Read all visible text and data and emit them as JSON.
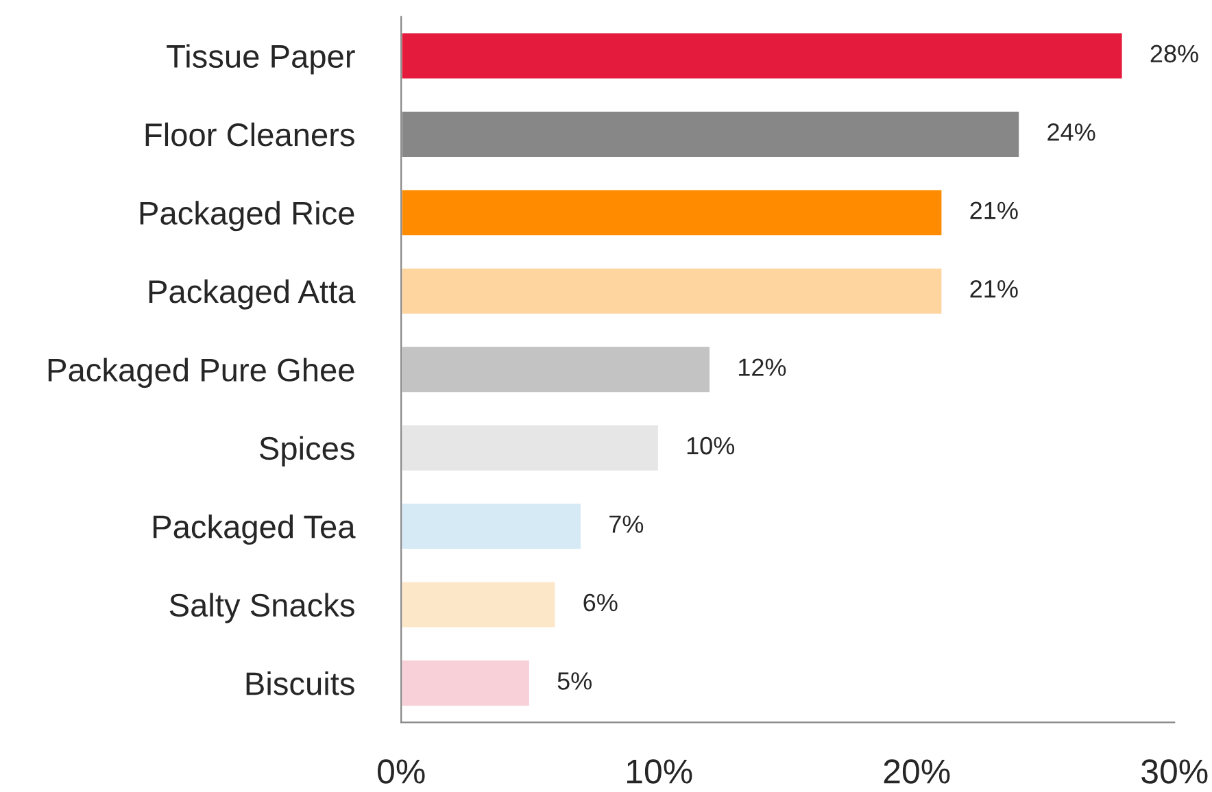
{
  "chart_data": {
    "type": "bar",
    "orientation": "horizontal",
    "categories": [
      "Tissue Paper",
      "Floor Cleaners",
      "Packaged Rice",
      "Packaged Atta",
      "Packaged Pure Ghee",
      "Spices",
      "Packaged Tea",
      "Salty Snacks",
      "Biscuits"
    ],
    "values": [
      28,
      24,
      21,
      21,
      12,
      10,
      7,
      6,
      5
    ],
    "colors": [
      "#e41b3c",
      "#878787",
      "#ff8c00",
      "#ffd59f",
      "#c3c3c3",
      "#e6e6e6",
      "#d6eaf6",
      "#fde7c9",
      "#f7d0d8"
    ],
    "value_labels": [
      "28%",
      "24%",
      "21%",
      "21%",
      "12%",
      "10%",
      "7%",
      "6%",
      "5%"
    ],
    "xlim": [
      0,
      30
    ],
    "xticks": [
      {
        "value": 0,
        "label": "0%"
      },
      {
        "value": 10,
        "label": "10%"
      },
      {
        "value": 20,
        "label": "20%"
      },
      {
        "value": 30,
        "label": "30%"
      }
    ],
    "grid": false,
    "legend": false
  }
}
